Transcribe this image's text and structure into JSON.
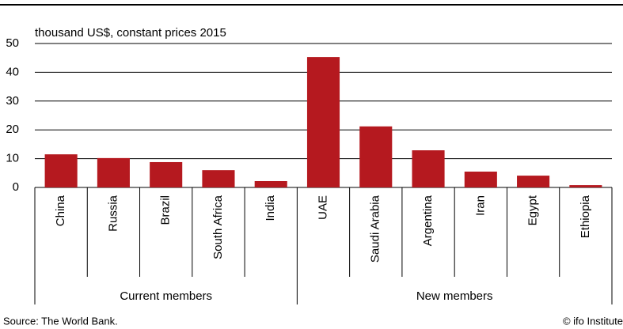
{
  "chart_data": {
    "type": "bar",
    "y_label": "thousand US$, constant prices 2015",
    "groups": [
      {
        "label": "Current members",
        "categories": [
          "China",
          "Russia",
          "Brazil",
          "South Africa",
          "India"
        ],
        "values": [
          11.5,
          10.2,
          8.8,
          6,
          2.2
        ]
      },
      {
        "label": "New members",
        "categories": [
          "UAE",
          "Saudi Arabia",
          "Argentina",
          "Iran",
          "Egypt",
          "Ethiopia"
        ],
        "values": [
          45.3,
          21.2,
          12.9,
          5.5,
          4.1,
          0.8
        ]
      }
    ],
    "color": "#b5191f",
    "ylim": [
      0,
      50
    ],
    "yticks": [
      0,
      10,
      20,
      30,
      40,
      50
    ],
    "grid": true,
    "source": "Source: The World Bank.",
    "credit": "© ifo Institute"
  }
}
